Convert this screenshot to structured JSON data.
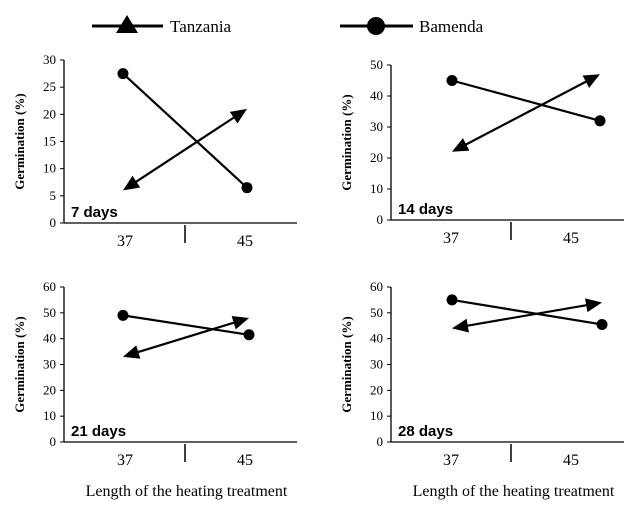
{
  "legend": [
    {
      "name": "Tanzania",
      "marker": "triangle"
    },
    {
      "name": "Bamenda",
      "marker": "circle"
    }
  ],
  "chart_data": [
    {
      "type": "line",
      "panel_label": "7 days",
      "categories": [
        "37",
        "45"
      ],
      "ylabel": "Germination (%)",
      "xlabel": "",
      "ylim": [
        0,
        30
      ],
      "yticks": [
        "0",
        "5",
        "10",
        "15",
        "20",
        "25",
        "30"
      ],
      "series": [
        {
          "name": "Tanzania",
          "values": [
            6,
            21
          ]
        },
        {
          "name": "Bamenda",
          "values": [
            27.5,
            6.5
          ]
        }
      ]
    },
    {
      "type": "line",
      "panel_label": "14 days",
      "categories": [
        "37",
        "45"
      ],
      "ylabel": "Germination (%)",
      "xlabel": "",
      "ylim": [
        0,
        50
      ],
      "yticks": [
        "0",
        "10",
        "20",
        "30",
        "40",
        "50"
      ],
      "series": [
        {
          "name": "Tanzania",
          "values": [
            22,
            47
          ]
        },
        {
          "name": "Bamenda",
          "values": [
            45,
            32
          ]
        }
      ]
    },
    {
      "type": "line",
      "panel_label": "21 days",
      "categories": [
        "37",
        "45"
      ],
      "ylabel": "Germination (%)",
      "xlabel": "Length of the heating treatment",
      "ylim": [
        0,
        60
      ],
      "yticks": [
        "0",
        "10",
        "20",
        "30",
        "40",
        "50",
        "60"
      ],
      "series": [
        {
          "name": "Tanzania",
          "values": [
            33,
            48
          ]
        },
        {
          "name": "Bamenda",
          "values": [
            49,
            41.5
          ]
        }
      ]
    },
    {
      "type": "line",
      "panel_label": "28 days",
      "categories": [
        "37",
        "45"
      ],
      "ylabel": "Germination (%)",
      "xlabel": "Length of the heating treatment",
      "ylim": [
        0,
        60
      ],
      "yticks": [
        "0",
        "10",
        "20",
        "30",
        "40",
        "50",
        "60"
      ],
      "series": [
        {
          "name": "Tanzania",
          "values": [
            44,
            54
          ]
        },
        {
          "name": "Bamenda",
          "values": [
            55,
            45.5
          ]
        }
      ]
    }
  ]
}
